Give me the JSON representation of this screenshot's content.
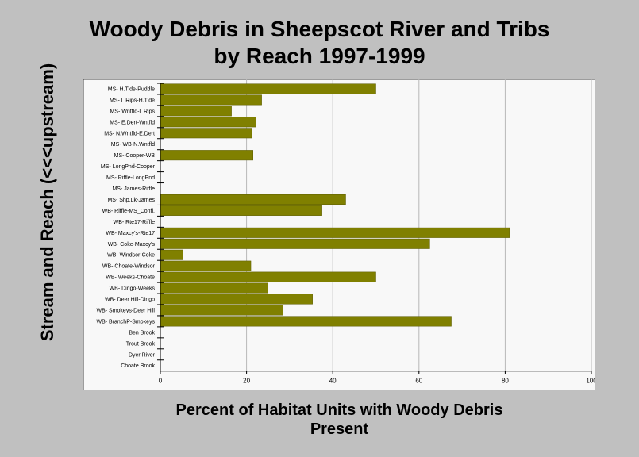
{
  "title": "Woody Debris in Sheepscot River and Tribs\nby Reach 1997-1999",
  "chart_data": {
    "type": "bar",
    "orientation": "horizontal",
    "title": "Woody Debris in Sheepscot River and Tribs\nby Reach 1997-1999",
    "xlabel": "Percent of Habitat Units with Woody Debris\nPresent",
    "ylabel": "Stream and Reach\n(<<<upstream)",
    "xlim": [
      0,
      100
    ],
    "xticks": [
      0,
      20,
      40,
      60,
      80,
      100
    ],
    "grid": "vertical",
    "bar_color": "#808000",
    "categories": [
      "MS- H.Tide-Puddle",
      "MS- L Rips-H.Tide",
      "MS- Wntfld-L Rips",
      "MS- E.Dert-Wntfld",
      "MS- N.Wntfld-E.Dert",
      "MS- WB-N.Wntfld",
      "MS- Cooper-WB",
      "MS- LongPnd-Cooper",
      "MS- Riffle-LongPnd",
      "MS- James-Riffle",
      "MS- Shp.Lk-James",
      "WB- Riffle-MS_Confl.",
      "WB- Rte17-Riffle",
      "WB- Maxcy's-Rte17",
      "WB- Coke-Maxcy's",
      "WB- Windsor-Coke",
      "WB- Choate-Windsor",
      "WB- Weeks-Choate",
      "WB- Dirigo-Weeks",
      "WB- Deer Hill-Dirigo",
      "WB- Smokeys-Deer Hill",
      "WB- BranchP-Smokeys",
      "Ben Brook",
      "Trout Brook",
      "Dyer River",
      "Choate Brook"
    ],
    "values": [
      50,
      23.5,
      16.5,
      22.2,
      21.2,
      0,
      21.5,
      0,
      0,
      0,
      43,
      37.5,
      0,
      81,
      62.5,
      5.2,
      21,
      50,
      25,
      35.3,
      28.5,
      67.5,
      0,
      0,
      0,
      0
    ]
  }
}
